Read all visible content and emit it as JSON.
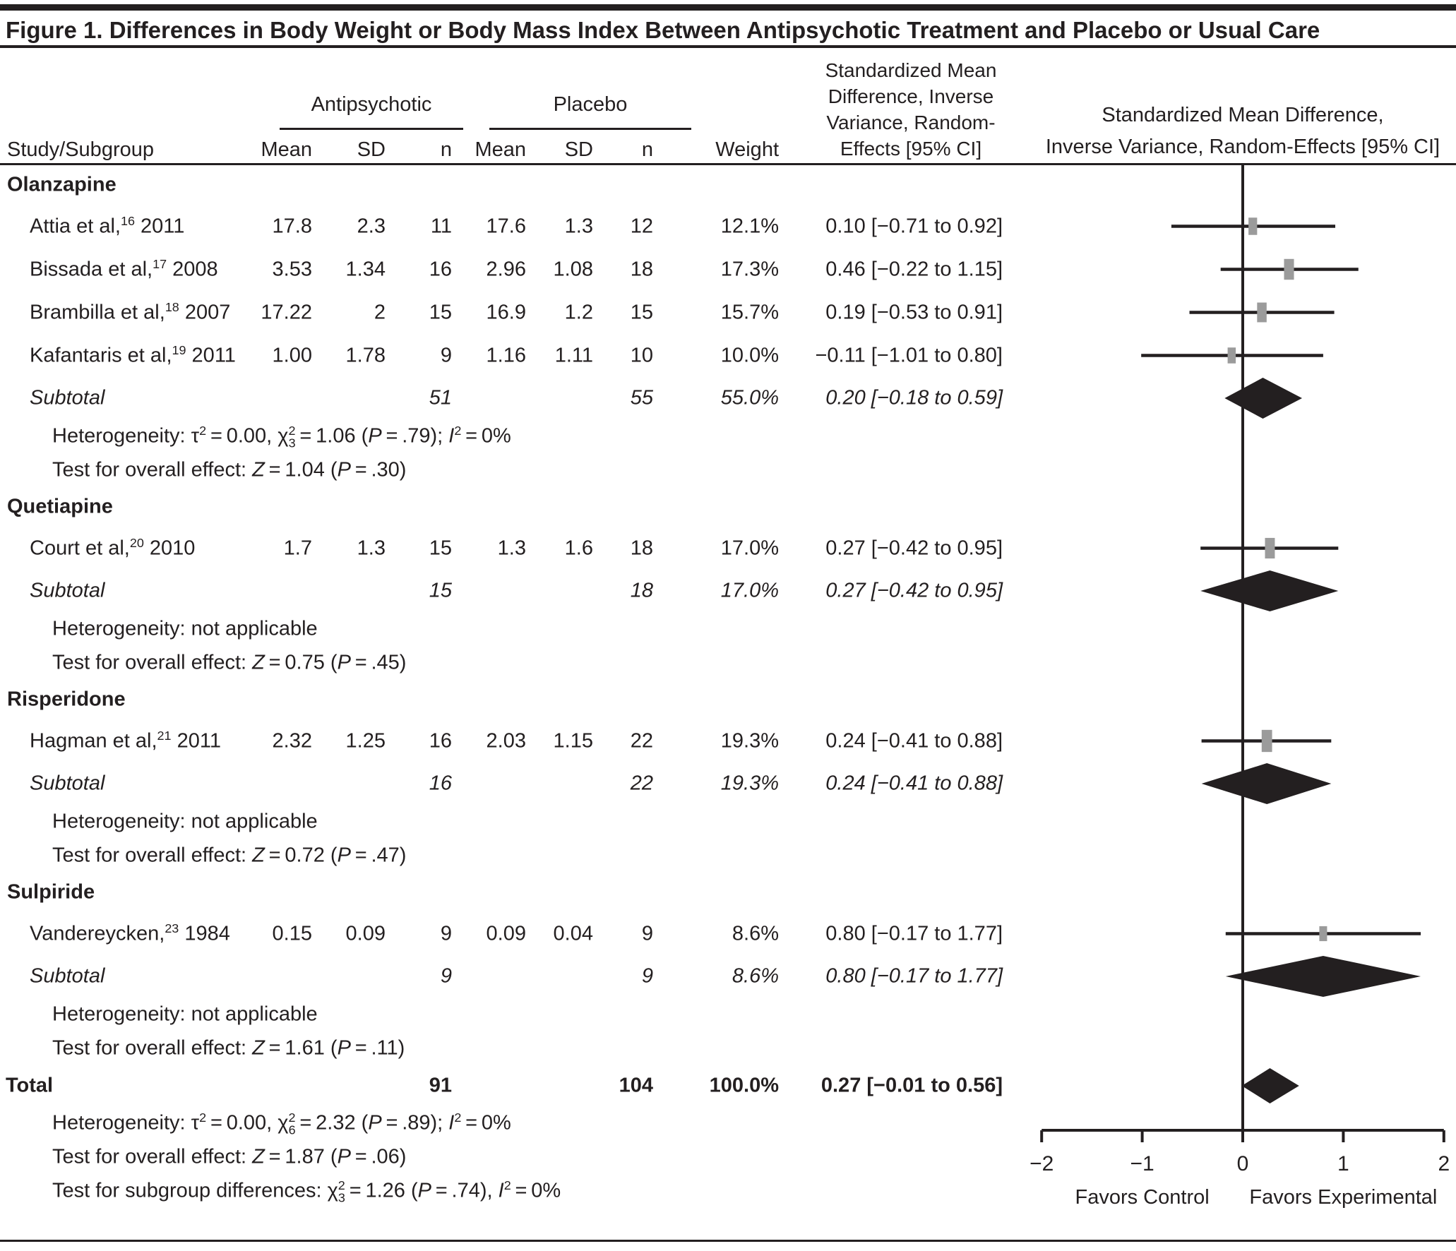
{
  "title": "Figure 1. Differences in Body Weight or Body Mass Index Between Antipsychotic Treatment and Placebo or Usual Care",
  "header": {
    "group1": "Antipsychotic",
    "group2": "Placebo",
    "study_col": "Study/Subgroup",
    "cols": [
      "Mean",
      "SD",
      "n",
      "Mean",
      "SD",
      "n",
      "Weight"
    ],
    "smd_col_lines": [
      "Standardized Mean",
      "Difference, Inverse",
      "Variance, Random-",
      "Effects [95% CI]"
    ],
    "plot_col_lines": [
      "Standardized Mean Difference,",
      "Inverse Variance, Random-Effects [95% CI]"
    ]
  },
  "rows": [
    {
      "type": "section",
      "label": "Olanzapine"
    },
    {
      "type": "study",
      "label": "Attia et al,^16^ 2011",
      "mean1": "17.8",
      "sd1": "2.3",
      "n1": "11",
      "mean2": "17.6",
      "sd2": "1.3",
      "n2": "12",
      "weight": "12.1%",
      "smd": "0.10 [−0.71 to 0.92]",
      "est": 0.1,
      "lo": -0.71,
      "hi": 0.92,
      "w": 12.1
    },
    {
      "type": "study",
      "label": "Bissada et al,^17^ 2008",
      "mean1": "3.53",
      "sd1": "1.34",
      "n1": "16",
      "mean2": "2.96",
      "sd2": "1.08",
      "n2": "18",
      "weight": "17.3%",
      "smd": "0.46 [−0.22 to 1.15]",
      "est": 0.46,
      "lo": -0.22,
      "hi": 1.15,
      "w": 17.3
    },
    {
      "type": "study",
      "label": "Brambilla et al,^18^ 2007",
      "mean1": "17.22",
      "sd1": "2",
      "n1": "15",
      "mean2": "16.9",
      "sd2": "1.2",
      "n2": "15",
      "weight": "15.7%",
      "smd": "0.19 [−0.53 to 0.91]",
      "est": 0.19,
      "lo": -0.53,
      "hi": 0.91,
      "w": 15.7
    },
    {
      "type": "study",
      "label": "Kafantaris et al,^19^ 2011",
      "mean1": "1.00",
      "sd1": "1.78",
      "n1": "9",
      "mean2": "1.16",
      "sd2": "1.11",
      "n2": "10",
      "weight": "10.0%",
      "smd": "−0.11 [−1.01 to 0.80]",
      "est": -0.11,
      "lo": -1.01,
      "hi": 0.8,
      "w": 10.0
    },
    {
      "type": "subtotal",
      "label": "Subtotal",
      "n1": "51",
      "n2": "55",
      "weight": "55.0%",
      "smd": "0.20 [−0.18 to 0.59]",
      "est": 0.2,
      "lo": -0.18,
      "hi": 0.59
    },
    {
      "type": "note",
      "label": "Heterogeneity: τ^2^ = 0.00, χ^2^~3~ = 1.06 (*P* = .79); *I*^2^ = 0%"
    },
    {
      "type": "note",
      "label": "Test for overall effect: *Z* = 1.04 (*P* = .30)"
    },
    {
      "type": "section",
      "label": "Quetiapine"
    },
    {
      "type": "study",
      "label": "Court et al,^20^ 2010",
      "mean1": "1.7",
      "sd1": "1.3",
      "n1": "15",
      "mean2": "1.3",
      "sd2": "1.6",
      "n2": "18",
      "weight": "17.0%",
      "smd": "0.27 [−0.42 to 0.95]",
      "est": 0.27,
      "lo": -0.42,
      "hi": 0.95,
      "w": 17.0
    },
    {
      "type": "subtotal",
      "label": "Subtotal",
      "n1": "15",
      "n2": "18",
      "weight": "17.0%",
      "smd": "0.27 [−0.42 to 0.95]",
      "est": 0.27,
      "lo": -0.42,
      "hi": 0.95
    },
    {
      "type": "note",
      "label": "Heterogeneity: not applicable"
    },
    {
      "type": "note",
      "label": "Test for overall effect: *Z* = 0.75 (*P* = .45)"
    },
    {
      "type": "section",
      "label": "Risperidone"
    },
    {
      "type": "study",
      "label": "Hagman et al,^21^ 2011",
      "mean1": "2.32",
      "sd1": "1.25",
      "n1": "16",
      "mean2": "2.03",
      "sd2": "1.15",
      "n2": "22",
      "weight": "19.3%",
      "smd": "0.24 [−0.41 to 0.88]",
      "est": 0.24,
      "lo": -0.41,
      "hi": 0.88,
      "w": 19.3
    },
    {
      "type": "subtotal",
      "label": "Subtotal",
      "n1": "16",
      "n2": "22",
      "weight": "19.3%",
      "smd": "0.24 [−0.41 to 0.88]",
      "est": 0.24,
      "lo": -0.41,
      "hi": 0.88
    },
    {
      "type": "note",
      "label": "Heterogeneity: not applicable"
    },
    {
      "type": "note",
      "label": "Test for overall effect: *Z* = 0.72 (*P* = .47)"
    },
    {
      "type": "section",
      "label": "Sulpiride"
    },
    {
      "type": "study",
      "label": "Vandereycken,^23^ 1984",
      "mean1": "0.15",
      "sd1": "0.09",
      "n1": "9",
      "mean2": "0.09",
      "sd2": "0.04",
      "n2": "9",
      "weight": "8.6%",
      "smd": "0.80 [−0.17 to 1.77]",
      "est": 0.8,
      "lo": -0.17,
      "hi": 1.77,
      "w": 8.6
    },
    {
      "type": "subtotal",
      "label": "Subtotal",
      "n1": "9",
      "n2": "9",
      "weight": "8.6%",
      "smd": "0.80 [−0.17 to 1.77]",
      "est": 0.8,
      "lo": -0.17,
      "hi": 1.77
    },
    {
      "type": "note",
      "label": "Heterogeneity: not applicable"
    },
    {
      "type": "note",
      "label": "Test for overall effect: *Z* = 1.61 (*P* = .11)"
    },
    {
      "type": "total",
      "label": "Total",
      "n1": "91",
      "n2": "104",
      "weight": "100.0%",
      "smd": "0.27 [−0.01 to 0.56]",
      "est": 0.27,
      "lo": -0.01,
      "hi": 0.56
    },
    {
      "type": "note",
      "label": "Heterogeneity: τ^2^ = 0.00, χ^2^~6~ = 2.32 (*P* = .89); *I*^2^ = 0%"
    },
    {
      "type": "note",
      "label": "Test for overall effect: *Z* = 1.87 (*P* = .06)"
    },
    {
      "type": "note",
      "label": "Test for subgroup differences: χ^2^~3~ = 1.26 (*P* = .74), *I*^2^ = 0%"
    }
  ],
  "axis": {
    "min": -2,
    "max": 2,
    "ticks": [
      -2,
      -1,
      0,
      1,
      2
    ],
    "tick_labels": [
      "−2",
      "−1",
      "0",
      "1",
      "2"
    ],
    "left_label": "Favors Control",
    "right_label": "Favors Experimental"
  },
  "colors": {
    "ink": "#231f20",
    "marker_gray": "#9b9b9b"
  },
  "chart_data": {
    "type": "forest",
    "title": "Figure 1. Differences in Body Weight or Body Mass Index Between Antipsychotic Treatment and Placebo or Usual Care",
    "effect_measure": "Standardized Mean Difference, Inverse Variance, Random-Effects [95% CI]",
    "x_axis": {
      "min": -2,
      "max": 2,
      "ticks": [
        -2,
        -1,
        0,
        1,
        2
      ],
      "label_left": "Favors Control",
      "label_right": "Favors Experimental"
    },
    "groups": [
      {
        "name": "Olanzapine",
        "studies": [
          {
            "study": "Attia et al, 2011",
            "ref": 16,
            "treatment": {
              "mean": 17.8,
              "sd": 2.3,
              "n": 11
            },
            "control": {
              "mean": 17.6,
              "sd": 1.3,
              "n": 12
            },
            "weight_pct": 12.1,
            "smd": 0.1,
            "ci": [
              -0.71,
              0.92
            ]
          },
          {
            "study": "Bissada et al, 2008",
            "ref": 17,
            "treatment": {
              "mean": 3.53,
              "sd": 1.34,
              "n": 16
            },
            "control": {
              "mean": 2.96,
              "sd": 1.08,
              "n": 18
            },
            "weight_pct": 17.3,
            "smd": 0.46,
            "ci": [
              -0.22,
              1.15
            ]
          },
          {
            "study": "Brambilla et al, 2007",
            "ref": 18,
            "treatment": {
              "mean": 17.22,
              "sd": 2,
              "n": 15
            },
            "control": {
              "mean": 16.9,
              "sd": 1.2,
              "n": 15
            },
            "weight_pct": 15.7,
            "smd": 0.19,
            "ci": [
              -0.53,
              0.91
            ]
          },
          {
            "study": "Kafantaris et al, 2011",
            "ref": 19,
            "treatment": {
              "mean": 1.0,
              "sd": 1.78,
              "n": 9
            },
            "control": {
              "mean": 1.16,
              "sd": 1.11,
              "n": 10
            },
            "weight_pct": 10.0,
            "smd": -0.11,
            "ci": [
              -1.01,
              0.8
            ]
          }
        ],
        "subtotal": {
          "n_treatment": 51,
          "n_control": 55,
          "weight_pct": 55.0,
          "smd": 0.2,
          "ci": [
            -0.18,
            0.59
          ]
        },
        "heterogeneity": "τ2=0.00, χ23=1.06 (P=.79); I2=0%",
        "overall_effect": "Z=1.04 (P=.30)"
      },
      {
        "name": "Quetiapine",
        "studies": [
          {
            "study": "Court et al, 2010",
            "ref": 20,
            "treatment": {
              "mean": 1.7,
              "sd": 1.3,
              "n": 15
            },
            "control": {
              "mean": 1.3,
              "sd": 1.6,
              "n": 18
            },
            "weight_pct": 17.0,
            "smd": 0.27,
            "ci": [
              -0.42,
              0.95
            ]
          }
        ],
        "subtotal": {
          "n_treatment": 15,
          "n_control": 18,
          "weight_pct": 17.0,
          "smd": 0.27,
          "ci": [
            -0.42,
            0.95
          ]
        },
        "heterogeneity": "not applicable",
        "overall_effect": "Z=0.75 (P=.45)"
      },
      {
        "name": "Risperidone",
        "studies": [
          {
            "study": "Hagman et al, 2011",
            "ref": 21,
            "treatment": {
              "mean": 2.32,
              "sd": 1.25,
              "n": 16
            },
            "control": {
              "mean": 2.03,
              "sd": 1.15,
              "n": 22
            },
            "weight_pct": 19.3,
            "smd": 0.24,
            "ci": [
              -0.41,
              0.88
            ]
          }
        ],
        "subtotal": {
          "n_treatment": 16,
          "n_control": 22,
          "weight_pct": 19.3,
          "smd": 0.24,
          "ci": [
            -0.41,
            0.88
          ]
        },
        "heterogeneity": "not applicable",
        "overall_effect": "Z=0.72 (P=.47)"
      },
      {
        "name": "Sulpiride",
        "studies": [
          {
            "study": "Vandereycken, 1984",
            "ref": 23,
            "treatment": {
              "mean": 0.15,
              "sd": 0.09,
              "n": 9
            },
            "control": {
              "mean": 0.09,
              "sd": 0.04,
              "n": 9
            },
            "weight_pct": 8.6,
            "smd": 0.8,
            "ci": [
              -0.17,
              1.77
            ]
          }
        ],
        "subtotal": {
          "n_treatment": 9,
          "n_control": 9,
          "weight_pct": 8.6,
          "smd": 0.8,
          "ci": [
            -0.17,
            1.77
          ]
        },
        "heterogeneity": "not applicable",
        "overall_effect": "Z=1.61 (P=.11)"
      }
    ],
    "total": {
      "n_treatment": 91,
      "n_control": 104,
      "weight_pct": 100.0,
      "smd": 0.27,
      "ci": [
        -0.01,
        0.56
      ],
      "heterogeneity": "τ2=0.00, χ26=2.32 (P=.89); I2=0%",
      "overall_effect": "Z=1.87 (P=.06)",
      "subgroup_differences": "χ23=1.26 (P=.74), I2=0%"
    }
  }
}
